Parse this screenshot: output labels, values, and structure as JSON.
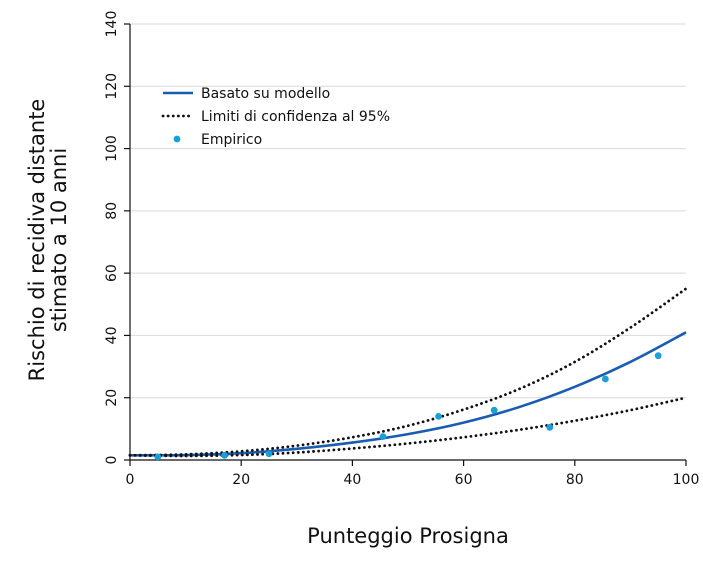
{
  "chart_data": {
    "type": "line",
    "title": "",
    "xlabel": "Punteggio Prosigna",
    "ylabel_lines": [
      "Rischio di recidiva distante",
      "stimato a 10 anni"
    ],
    "xlim": [
      0,
      100
    ],
    "ylim": [
      0,
      140
    ],
    "xticks": [
      0,
      20,
      40,
      60,
      80,
      100
    ],
    "yticks": [
      0,
      20,
      40,
      60,
      80,
      100,
      120,
      140
    ],
    "grid": "horizontal",
    "legend_position": "top-left",
    "series": [
      {
        "name": "Basato su modello",
        "style": "solid",
        "color": "#1a5cb0",
        "x": [
          0,
          10,
          20,
          30,
          40,
          50,
          60,
          70,
          80,
          90,
          100
        ],
        "y": [
          1.5,
          1.6,
          2.2,
          3.6,
          5.6,
          8.3,
          12.0,
          17.0,
          23.5,
          31.5,
          41.0
        ]
      },
      {
        "name": "Limiti di confidenza al 95%",
        "style": "dotted",
        "color": "#111111",
        "x": [
          0,
          10,
          20,
          30,
          40,
          50,
          60,
          70,
          80,
          90,
          100
        ],
        "y": [
          1.5,
          1.8,
          2.8,
          4.6,
          7.3,
          11.0,
          16.2,
          22.8,
          31.5,
          42.5,
          55.0
        ]
      },
      {
        "name": "",
        "style": "dotted",
        "color": "#111111",
        "x": [
          0,
          10,
          20,
          30,
          40,
          50,
          60,
          70,
          80,
          90,
          100
        ],
        "y": [
          1.5,
          1.3,
          1.6,
          2.4,
          3.7,
          5.3,
          7.3,
          9.7,
          12.6,
          16.0,
          20.0
        ]
      },
      {
        "name": "Empirico",
        "style": "points",
        "color": "#1a9fd9",
        "x": [
          5,
          17,
          25,
          45.5,
          55.5,
          65.5,
          75.5,
          85.5,
          95
        ],
        "y": [
          1.0,
          1.5,
          2.0,
          7.5,
          14.0,
          16.0,
          10.5,
          26.0,
          33.5
        ]
      }
    ]
  }
}
